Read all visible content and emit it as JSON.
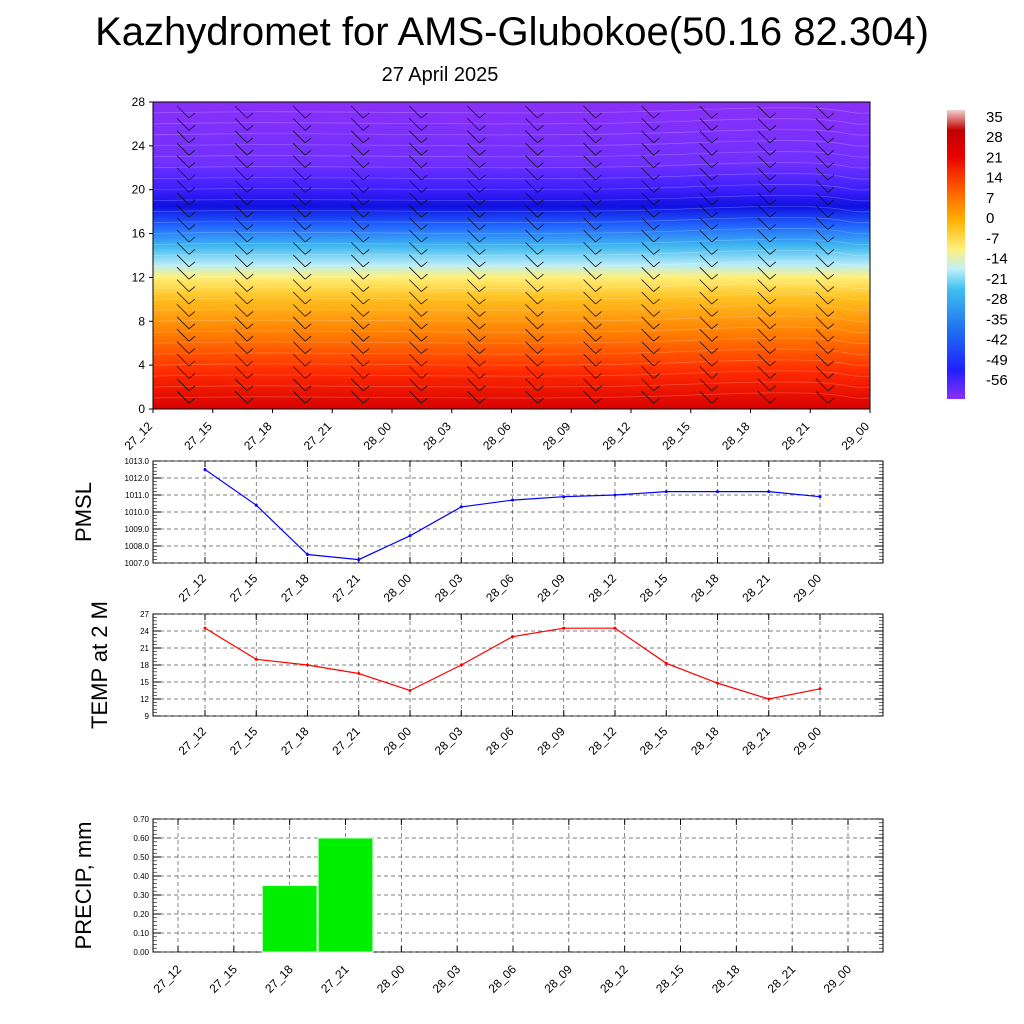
{
  "title": "Kazhydromet for AMS-Glubokoe(50.16 82.304)",
  "subtitle": "27 April 2025",
  "chart_data": [
    {
      "type": "heatmap",
      "x_ticks": [
        "27_12",
        "27_15",
        "27_18",
        "27_21",
        "28_00",
        "28_03",
        "28_06",
        "28_09",
        "28_12",
        "28_15",
        "28_18",
        "28_21",
        "29_00"
      ],
      "y_ticks": [
        "0",
        "4",
        "8",
        "12",
        "16",
        "20",
        "24",
        "28"
      ],
      "ylim": [
        0,
        28
      ],
      "colorbar_labels": [
        "35",
        "28",
        "21",
        "14",
        "7",
        "0",
        "-7",
        "-14",
        "-21",
        "-28",
        "-35",
        "-42",
        "-49",
        "-56"
      ],
      "colorbar_range": [
        -60,
        38
      ],
      "colors": {
        "very_warm": "#e00000",
        "warm": "#ff5000",
        "mild": "#ffa000",
        "neutral": "#fff080",
        "cool": "#80d8f8",
        "cold": "#2090f0",
        "very_cold": "#2020ff",
        "upper": "#8030ff"
      },
      "wind_barbs": true
    },
    {
      "type": "line",
      "ylabel": "PMSL",
      "x": [
        "27_12",
        "27_15",
        "27_18",
        "27_21",
        "28_00",
        "28_03",
        "28_06",
        "28_09",
        "28_12",
        "28_15",
        "28_18",
        "28_21",
        "29_00"
      ],
      "values": [
        1012.5,
        1010.4,
        1007.5,
        1007.2,
        1008.6,
        1010.3,
        1010.7,
        1010.9,
        1011.0,
        1011.2,
        1011.2,
        1011.2,
        1010.9
      ],
      "y_ticks": [
        "1007.0",
        "1008.0",
        "1009.0",
        "1010.0",
        "1011.0",
        "1012.0",
        "1013.0"
      ],
      "ylim": [
        1007,
        1013
      ],
      "color": "#0000ff",
      "grid": true
    },
    {
      "type": "line",
      "ylabel": "TEMP at 2 M",
      "x": [
        "27_12",
        "27_15",
        "27_18",
        "27_21",
        "28_00",
        "28_03",
        "28_06",
        "28_09",
        "28_12",
        "28_15",
        "28_18",
        "28_21",
        "29_00"
      ],
      "values": [
        24.5,
        19.0,
        18.0,
        16.5,
        13.5,
        18.0,
        23.0,
        24.5,
        24.5,
        18.3,
        14.8,
        12.0,
        13.8
      ],
      "y_ticks": [
        "9",
        "12",
        "15",
        "18",
        "21",
        "24",
        "27"
      ],
      "ylim": [
        9,
        27
      ],
      "color": "#ff0000",
      "grid": true
    },
    {
      "type": "bar",
      "ylabel": "PRECIP, mm",
      "categories": [
        "27_12",
        "27_15",
        "27_18",
        "27_21",
        "28_00",
        "28_03",
        "28_06",
        "28_09",
        "28_12",
        "28_15",
        "28_18",
        "28_21",
        "29_00"
      ],
      "values": [
        0,
        0,
        0.35,
        0.6,
        0,
        0,
        0,
        0,
        0,
        0,
        0,
        0,
        0
      ],
      "y_ticks": [
        "0.00",
        "0.10",
        "0.20",
        "0.30",
        "0.40",
        "0.50",
        "0.60",
        "0.70"
      ],
      "ylim": [
        0,
        0.7
      ],
      "color": "#00ee00",
      "grid": true
    }
  ]
}
